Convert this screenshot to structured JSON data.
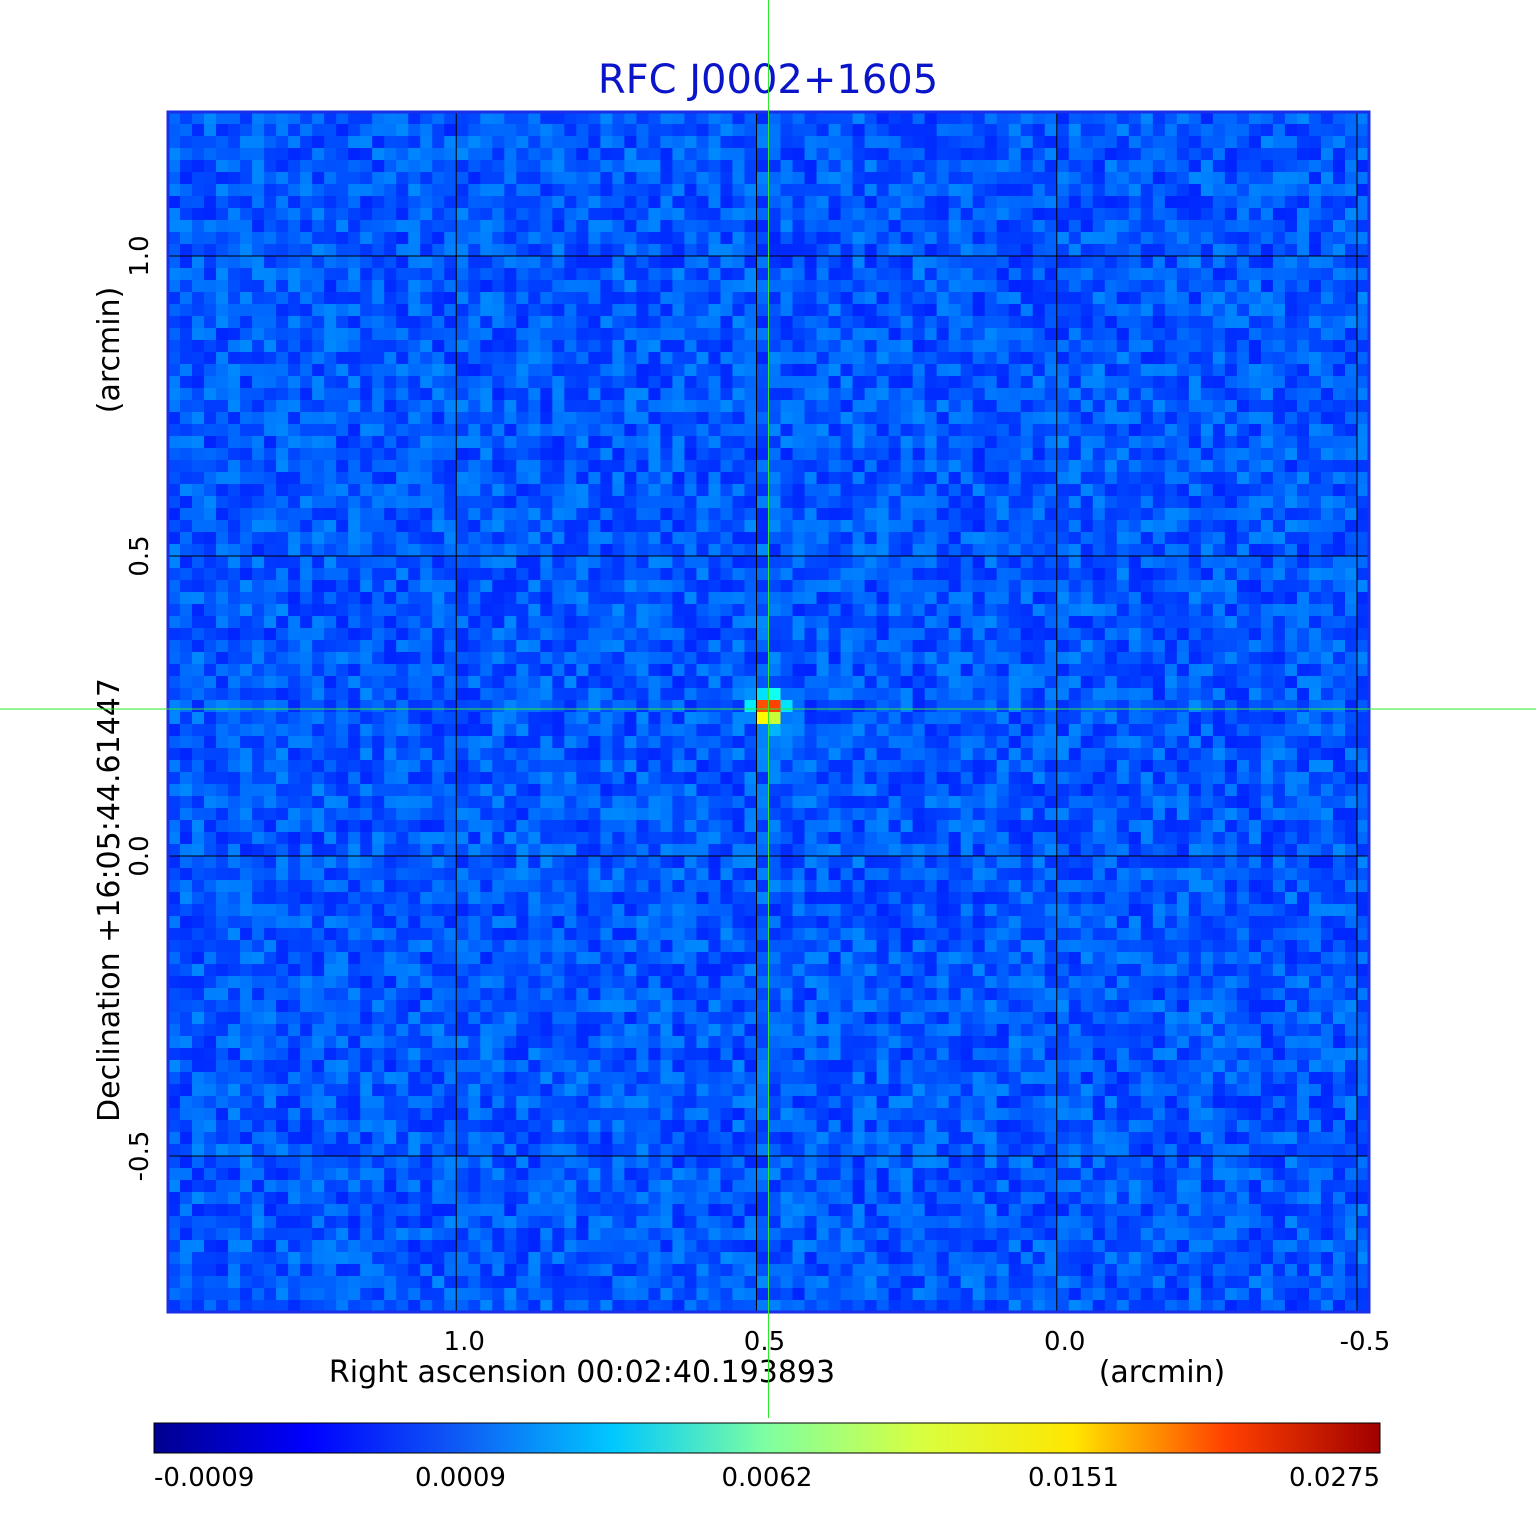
{
  "chart_data": {
    "type": "heatmap",
    "title": "RFC J0002+1605",
    "xlabel": "Right ascension  00:02:40.193893",
    "xunit": "(arcmin)",
    "ylabel": "Declination  +16:05:44.61447",
    "yunit": "(arcmin)",
    "xlim": [
      1.48,
      -0.52
    ],
    "ylim": [
      -0.76,
      1.24
    ],
    "x_ticks": [
      1.0,
      0.5,
      0.0,
      -0.5
    ],
    "y_ticks": [
      1.0,
      0.5,
      0.0,
      -0.5
    ],
    "x_tick_labels": [
      "1.0",
      "0.5",
      "0.0",
      "-0.5"
    ],
    "y_tick_labels": [
      "1.0",
      "0.5",
      "0.0",
      "-0.5"
    ],
    "grid": true,
    "crosshair": {
      "x": 0.48,
      "y": 0.245
    },
    "source_peak": {
      "x": 0.48,
      "y": 0.245,
      "value": 0.0275
    },
    "colorbar": {
      "tick_values": [
        -0.0009,
        0.0009,
        0.0062,
        0.0151,
        0.0275
      ],
      "tick_labels": [
        "-0.0009",
        "0.0009",
        "0.0062",
        "0.0151",
        "0.0275"
      ],
      "colormap": "jet"
    },
    "colors": {
      "title": "#0a14c8",
      "frame": "#1a2fe8",
      "grid": "#000000",
      "crosshair": "#2ee82e",
      "background_noise": "#1c5cf0"
    }
  }
}
